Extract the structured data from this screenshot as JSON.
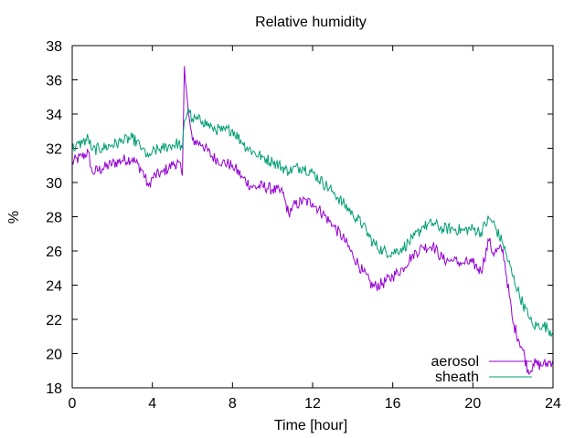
{
  "chart_data": {
    "type": "line",
    "title": "Relative humidity",
    "xlabel": "Time [hour]",
    "ylabel": "%",
    "xlim": [
      0,
      24
    ],
    "ylim": [
      18,
      38
    ],
    "xticks": [
      0,
      4,
      8,
      12,
      16,
      20,
      24
    ],
    "yticks": [
      18,
      20,
      22,
      24,
      26,
      28,
      30,
      32,
      34,
      36,
      38
    ],
    "grid": false,
    "legend_position": "bottom-right",
    "series": [
      {
        "name": "aerosol",
        "color": "#9400d3",
        "x": [
          0,
          0.5,
          0.8,
          1.0,
          1.5,
          2.0,
          2.5,
          3.0,
          3.5,
          3.8,
          4.0,
          4.5,
          5.0,
          5.3,
          5.5,
          5.6,
          5.8,
          6.0,
          6.5,
          7.0,
          7.5,
          8.0,
          8.5,
          9.0,
          9.5,
          10.0,
          10.5,
          10.8,
          11.0,
          11.5,
          12.0,
          12.5,
          13.0,
          13.5,
          14.0,
          14.5,
          15.0,
          15.5,
          16.0,
          16.5,
          17.0,
          17.5,
          18.0,
          18.5,
          19.0,
          19.5,
          20.0,
          20.4,
          20.8,
          21.0,
          21.5,
          22.0,
          22.5,
          22.8,
          23.0,
          23.5,
          24.0
        ],
        "values": [
          31.2,
          31.5,
          31.8,
          30.6,
          30.8,
          31.1,
          31.3,
          31.4,
          30.7,
          29.8,
          30.3,
          30.6,
          31.0,
          31.2,
          30.4,
          36.8,
          34.0,
          32.5,
          32.2,
          31.5,
          31.2,
          31.0,
          30.3,
          29.7,
          29.8,
          29.6,
          29.4,
          28.2,
          28.6,
          28.9,
          28.8,
          28.2,
          27.5,
          26.8,
          25.8,
          24.8,
          23.9,
          24.1,
          24.5,
          25.0,
          25.8,
          26.2,
          26.3,
          25.5,
          25.4,
          25.3,
          25.3,
          24.8,
          26.6,
          25.9,
          26.1,
          21.8,
          20.2,
          18.8,
          19.4,
          19.3,
          19.6
        ]
      },
      {
        "name": "sheath",
        "color": "#009e73",
        "x": [
          0,
          0.5,
          0.8,
          1.0,
          1.5,
          2.0,
          2.5,
          3.0,
          3.5,
          3.8,
          4.0,
          4.5,
          5.0,
          5.3,
          5.5,
          5.6,
          5.8,
          6.0,
          6.5,
          7.0,
          7.5,
          8.0,
          8.5,
          9.0,
          9.5,
          10.0,
          10.5,
          10.8,
          11.0,
          11.5,
          12.0,
          12.5,
          13.0,
          13.5,
          14.0,
          14.5,
          15.0,
          15.5,
          16.0,
          16.5,
          17.0,
          17.5,
          18.0,
          18.5,
          19.0,
          19.5,
          20.0,
          20.4,
          20.8,
          21.0,
          21.5,
          22.0,
          22.5,
          22.8,
          23.0,
          23.5,
          24.0
        ],
        "values": [
          32.0,
          32.3,
          32.6,
          31.9,
          32.0,
          32.2,
          32.4,
          32.6,
          32.0,
          31.5,
          31.8,
          32.0,
          32.2,
          32.3,
          32.0,
          33.6,
          34.3,
          33.7,
          33.6,
          33.2,
          33.0,
          33.1,
          32.3,
          31.8,
          31.5,
          31.2,
          30.9,
          30.6,
          30.8,
          30.9,
          30.6,
          30.0,
          29.5,
          28.8,
          28.2,
          27.5,
          26.5,
          26.0,
          25.9,
          26.2,
          26.7,
          27.4,
          27.6,
          27.3,
          27.3,
          27.2,
          27.3,
          27.1,
          27.9,
          27.7,
          26.4,
          24.5,
          22.9,
          22.1,
          21.6,
          21.7,
          21.2
        ]
      }
    ]
  }
}
